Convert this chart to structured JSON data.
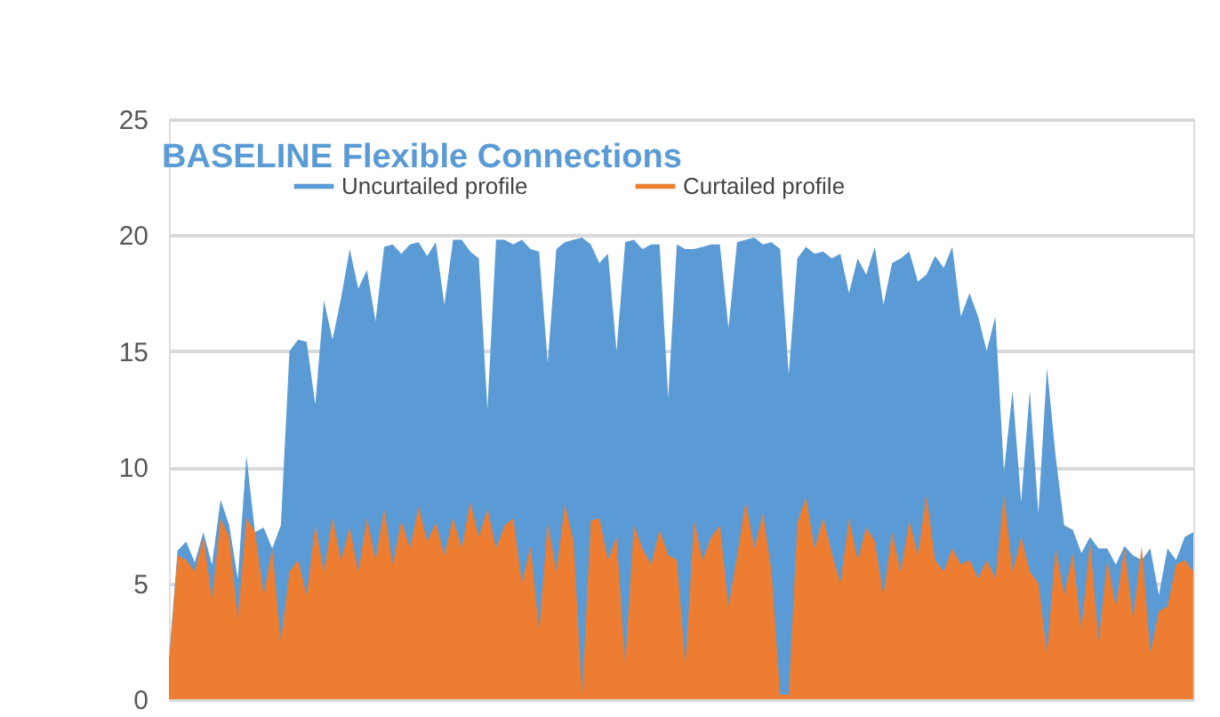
{
  "chart_data": {
    "type": "area",
    "title": "BASELINE Flexible Connections",
    "categories": [
      null,
      null,
      null,
      null,
      null,
      null,
      null,
      null,
      null,
      null,
      null,
      null,
      null,
      null,
      null,
      null,
      null,
      null,
      null,
      null,
      null,
      null,
      null,
      null,
      null,
      null,
      null,
      null,
      null,
      null,
      null,
      null,
      null,
      null,
      null,
      null,
      null,
      null,
      null,
      null,
      null,
      null,
      null,
      null,
      null,
      null,
      null,
      null,
      null,
      null,
      null,
      null,
      null,
      null,
      null,
      null,
      null,
      null,
      null,
      null,
      null,
      null,
      null,
      null,
      null,
      null,
      null,
      null,
      null,
      null,
      null,
      null,
      null,
      null,
      null,
      null,
      null,
      null,
      null,
      null,
      null,
      null,
      null,
      null,
      null,
      null,
      null,
      null,
      null,
      null,
      null,
      null,
      null,
      null,
      null,
      null,
      null,
      null,
      null,
      null,
      null,
      null,
      null,
      null,
      null,
      null,
      null,
      null,
      null,
      null,
      null,
      null,
      null,
      null,
      null,
      null,
      null,
      null,
      null,
      null
    ],
    "series": [
      {
        "name": "Uncurtailed profile",
        "color": "#5b9bd5",
        "values": [
          1.7,
          6.4,
          6.8,
          5.9,
          7.2,
          5.8,
          8.6,
          7.5,
          5.2,
          10.5,
          7.2,
          7.4,
          6.5,
          7.5,
          15.0,
          15.5,
          15.4,
          12.7,
          17.2,
          15.5,
          17.3,
          19.4,
          17.7,
          18.5,
          16.3,
          19.5,
          19.6,
          19.2,
          19.6,
          19.7,
          19.1,
          19.7,
          17.0,
          19.8,
          19.8,
          19.3,
          19.0,
          12.5,
          19.8,
          19.8,
          19.6,
          19.8,
          19.4,
          19.3,
          14.5,
          19.4,
          19.7,
          19.8,
          19.9,
          19.6,
          18.8,
          19.2,
          15.0,
          19.7,
          19.8,
          19.4,
          19.6,
          19.6,
          13.0,
          19.6,
          19.4,
          19.4,
          19.5,
          19.6,
          19.6,
          16.0,
          19.7,
          19.8,
          19.9,
          19.6,
          19.7,
          19.4,
          14.0,
          19.0,
          19.5,
          19.2,
          19.3,
          19.0,
          19.2,
          17.5,
          19.0,
          18.3,
          19.5,
          17.0,
          18.8,
          19.0,
          19.3,
          18.0,
          18.3,
          19.1,
          18.6,
          19.5,
          16.5,
          17.5,
          16.5,
          15.0,
          16.5,
          9.8,
          13.3,
          8.5,
          13.3,
          8.0,
          14.3,
          10.5,
          7.5,
          7.3,
          6.3,
          7.0,
          6.5,
          6.5,
          5.8,
          6.6,
          6.2,
          6.0,
          6.5,
          4.5,
          6.5,
          6.0,
          7.0,
          7.2
        ]
      },
      {
        "name": "Curtailed profile",
        "color": "#ed7d31",
        "values": [
          1.5,
          6.2,
          6.0,
          5.5,
          7.0,
          4.3,
          7.8,
          7.0,
          3.5,
          7.8,
          7.2,
          4.5,
          6.5,
          2.5,
          5.5,
          6.0,
          4.5,
          7.5,
          5.5,
          7.8,
          6.0,
          7.4,
          5.5,
          7.8,
          6.0,
          8.2,
          5.8,
          7.7,
          6.5,
          8.3,
          6.8,
          7.6,
          6.2,
          7.8,
          6.5,
          8.5,
          7.0,
          8.2,
          6.5,
          7.5,
          7.8,
          5.0,
          6.6,
          3.0,
          7.6,
          5.5,
          8.4,
          6.8,
          0.2,
          7.7,
          7.8,
          6.0,
          7.0,
          1.5,
          7.5,
          6.5,
          5.8,
          7.3,
          6.2,
          6.0,
          1.5,
          7.7,
          6.0,
          7.0,
          7.5,
          4.0,
          6.2,
          8.5,
          6.5,
          8.0,
          5.5,
          0.2,
          0.2,
          7.6,
          8.7,
          6.5,
          7.8,
          6.3,
          5.0,
          7.8,
          6.0,
          7.4,
          6.8,
          4.5,
          7.2,
          5.5,
          7.7,
          6.2,
          8.8,
          6.0,
          5.5,
          6.5,
          5.8,
          6.0,
          5.2,
          6.0,
          5.2,
          8.8,
          5.5,
          7.0,
          5.5,
          5.0,
          2.0,
          6.5,
          4.5,
          6.3,
          3.0,
          6.8,
          2.5,
          6.0,
          4.0,
          6.5,
          3.5,
          6.6,
          2.0,
          3.8,
          4.0,
          5.8,
          6.0,
          5.5
        ]
      }
    ],
    "ylim": [
      0,
      25
    ],
    "yticks": [
      0,
      5,
      10,
      15,
      20,
      25
    ],
    "grid": "y",
    "legend": "top"
  }
}
